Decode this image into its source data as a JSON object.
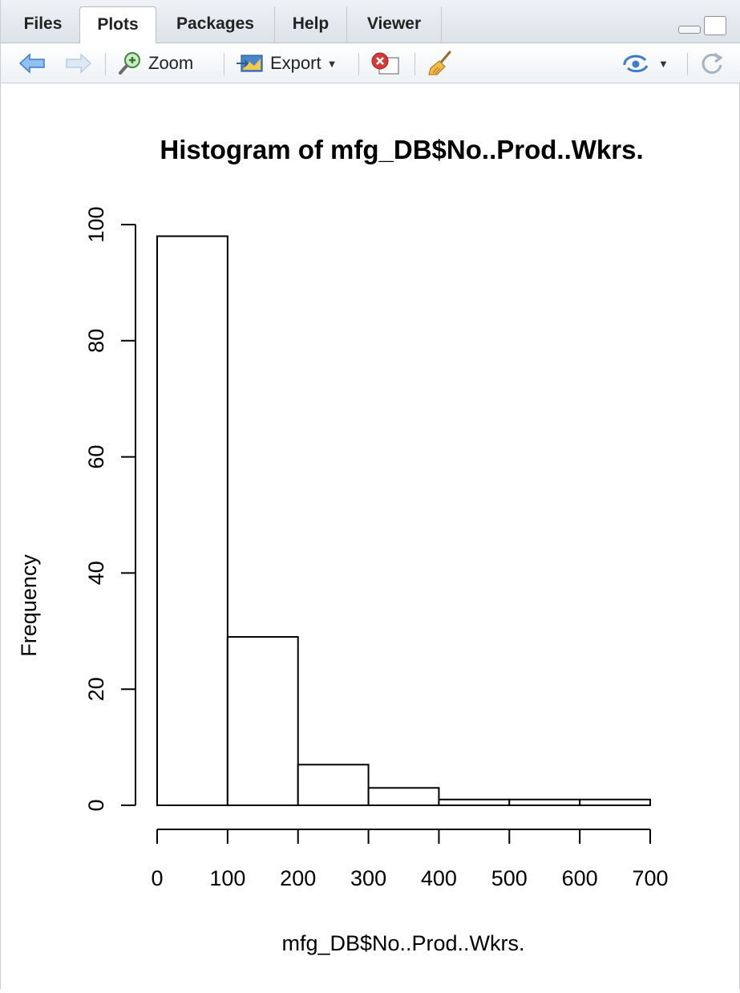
{
  "tabs": [
    {
      "label": "Files",
      "active": false
    },
    {
      "label": "Plots",
      "active": true
    },
    {
      "label": "Packages",
      "active": false
    },
    {
      "label": "Help",
      "active": false
    },
    {
      "label": "Viewer",
      "active": false
    }
  ],
  "toolbar": {
    "back_icon": "arrow-left-icon",
    "forward_icon": "arrow-right-icon",
    "zoom_label": "Zoom",
    "export_label": "Export",
    "remove_icon": "remove-plot-icon",
    "clear_icon": "broom-icon",
    "publish_icon": "publish-icon",
    "refresh_icon": "refresh-icon",
    "accent_color": "#3d7cc9"
  },
  "chart_data": {
    "type": "histogram",
    "title": "Histogram of mfg_DB$No..Prod..Wkrs.",
    "xlabel": "mfg_DB$No..Prod..Wkrs.",
    "ylabel": "Frequency",
    "bins": [
      {
        "x0": 0,
        "x1": 100,
        "count": 98
      },
      {
        "x0": 100,
        "x1": 200,
        "count": 29
      },
      {
        "x0": 200,
        "x1": 300,
        "count": 7
      },
      {
        "x0": 300,
        "x1": 400,
        "count": 3
      },
      {
        "x0": 400,
        "x1": 500,
        "count": 1
      },
      {
        "x0": 500,
        "x1": 600,
        "count": 1
      },
      {
        "x0": 600,
        "x1": 700,
        "count": 1
      }
    ],
    "xticks": [
      "0",
      "100",
      "200",
      "300",
      "400",
      "500",
      "600",
      "700"
    ],
    "yticks": [
      "0",
      "20",
      "40",
      "60",
      "80",
      "100"
    ],
    "xlim": [
      0,
      700
    ],
    "ylim": [
      0,
      100
    ],
    "grid": false,
    "bar_fill": "#ffffff",
    "bar_stroke": "#000000"
  }
}
